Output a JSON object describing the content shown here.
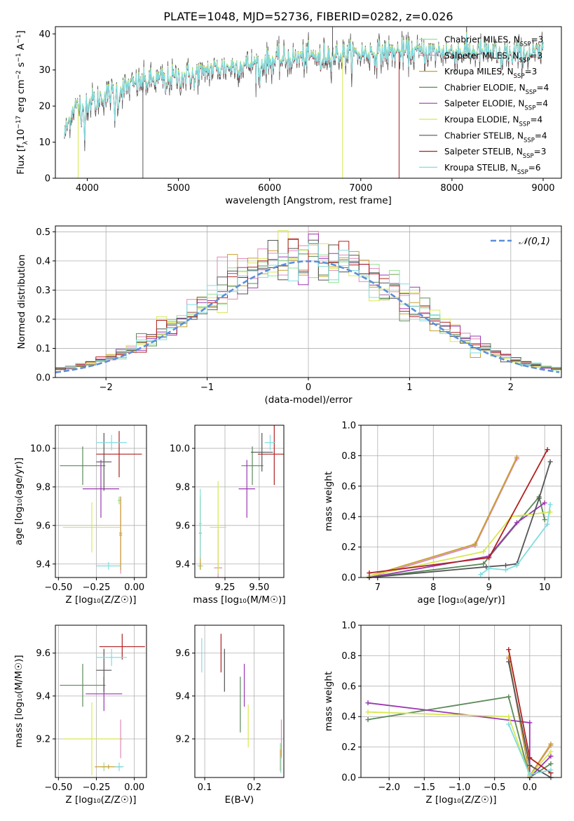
{
  "figure_title": "PLATE=1048, MJD=52736, FIBERID=0282, z=0.026",
  "models": [
    {
      "name": "Chabrier MILES, N",
      "sub": "SSP",
      "tail": "=3",
      "color": "#90e090"
    },
    {
      "name": "Salpeter MILES, N",
      "sub": "SSP",
      "tail": "=3",
      "color": "#e088b8"
    },
    {
      "name": "Kroupa MILES, N",
      "sub": "SSP",
      "tail": "=3",
      "color": "#c9a030"
    },
    {
      "name": "Chabrier ELODIE, N",
      "sub": "SSP",
      "tail": "=4",
      "color": "#5a8a5a"
    },
    {
      "name": "Salpeter ELODIE, N",
      "sub": "SSP",
      "tail": "=4",
      "color": "#9a38b0"
    },
    {
      "name": "Kroupa ELODIE, N",
      "sub": "SSP",
      "tail": "=4",
      "color": "#d8e850"
    },
    {
      "name": "Chabrier STELIB, N",
      "sub": "SSP",
      "tail": "=4",
      "color": "#555555"
    },
    {
      "name": "Salpeter STELIB, N",
      "sub": "SSP",
      "tail": "=3",
      "color": "#b02020"
    },
    {
      "name": "Kroupa STELIB, N",
      "sub": "SSP",
      "tail": "=6",
      "color": "#80dde0"
    }
  ],
  "chart_data": [
    {
      "id": "spectrum",
      "type": "line",
      "xlabel": "wavelength [Angstrom, rest frame]",
      "ylabel": {
        "pre": "Flux [f",
        "sub": "λ",
        "mid": "10",
        "sup": "−17",
        "post": " erg cm",
        "sup2": "−2",
        "post2": " s",
        "sup3": "−1",
        "post3": " A",
        "sup4": "−1",
        "post4": "]"
      },
      "xlim": [
        3650,
        9200
      ],
      "ylim": [
        0,
        42
      ],
      "xticks": [
        4000,
        5000,
        6000,
        7000,
        8000,
        9000
      ],
      "yticks": [
        0,
        10,
        20,
        30,
        40
      ],
      "continuum_knots": [
        [
          3750,
          12
        ],
        [
          3850,
          20
        ],
        [
          4000,
          21
        ],
        [
          4200,
          23
        ],
        [
          4500,
          26
        ],
        [
          4800,
          27.5
        ],
        [
          5000,
          28
        ],
        [
          5300,
          30
        ],
        [
          5600,
          31
        ],
        [
          5900,
          32
        ],
        [
          6200,
          33
        ],
        [
          6600,
          34
        ],
        [
          7000,
          34.5
        ],
        [
          7400,
          35
        ],
        [
          7800,
          35
        ],
        [
          8200,
          35
        ],
        [
          8600,
          34.8
        ],
        [
          9000,
          34.5
        ]
      ],
      "absorption_lines": [
        [
          3934,
          8
        ],
        [
          3969,
          7
        ],
        [
          4102,
          4
        ],
        [
          4300,
          6
        ],
        [
          4340,
          4
        ],
        [
          4861,
          5
        ],
        [
          5175,
          5
        ],
        [
          5270,
          3
        ],
        [
          5893,
          6
        ],
        [
          6563,
          5
        ],
        [
          8500,
          4
        ],
        [
          8542,
          5
        ],
        [
          8662,
          4
        ]
      ],
      "spikes": [
        {
          "x": 3900,
          "y": 0,
          "series": 5
        },
        {
          "x": 4610,
          "y": 0,
          "series": 6
        },
        {
          "x": 6800,
          "y": 0,
          "series": 5
        },
        {
          "x": 7420,
          "y": 0,
          "series": 7
        },
        {
          "x": 6690,
          "y": 42,
          "series": 6
        }
      ]
    },
    {
      "id": "residuals",
      "type": "histogram",
      "xlabel": "(data-model)/error",
      "ylabel": "Normed distribution",
      "xlim": [
        -2.5,
        2.5
      ],
      "ylim": [
        0,
        0.52
      ],
      "xticks": [
        -2,
        -1,
        0,
        1,
        2
      ],
      "yticks": [
        0,
        0.1,
        0.2,
        0.3,
        0.4,
        0.5
      ],
      "bin_width": 0.1,
      "reference_curve": {
        "label": "𝒩(0,1)",
        "mean": 0,
        "sigma": 1,
        "color": "#5b8fd8"
      }
    },
    {
      "id": "age_vs_Z",
      "type": "scatter_errorbar",
      "xlabel": "Z [log₁₀(Z/Z☉)]",
      "ylabel": "age  [log₁₀(age/yr)]",
      "xlim": [
        -0.52,
        0.08
      ],
      "ylim": [
        9.33,
        10.12
      ],
      "xticks": [
        -0.5,
        -0.25,
        0
      ],
      "xticklabels": [
        "−0.50",
        "−0.25",
        "0.00"
      ],
      "yticks": [
        9.4,
        9.6,
        9.8,
        10.0
      ],
      "yticklabels": [
        "9.4",
        "9.6",
        "9.8",
        "10.0"
      ],
      "points": [
        {
          "series": 0,
          "x": -0.1,
          "y": 9.73,
          "xerr": 0.01,
          "yerr": 0.02
        },
        {
          "series": 1,
          "x": -0.09,
          "y": 9.55,
          "xerr": 0.01,
          "yerr": 0.2
        },
        {
          "series": 2,
          "x": -0.09,
          "y": 9.56,
          "xerr": 0.01,
          "yerr": 0.19
        },
        {
          "series": 3,
          "x": -0.34,
          "y": 9.91,
          "xerr": 0.15,
          "yerr": 0.1
        },
        {
          "series": 4,
          "x": -0.22,
          "y": 9.79,
          "xerr": 0.12,
          "yerr": 0.15
        },
        {
          "series": 5,
          "x": -0.28,
          "y": 9.59,
          "xerr": 0.19,
          "yerr": 0.13
        },
        {
          "series": 6,
          "x": -0.2,
          "y": 9.93,
          "xerr": 0.05,
          "yerr": 0.15
        },
        {
          "series": 7,
          "x": -0.1,
          "y": 9.97,
          "xerr": 0.15,
          "yerr": 0.12
        },
        {
          "series": 8,
          "x": -0.15,
          "y": 10.03,
          "xerr": 0.1,
          "yerr": 0.04
        },
        {
          "series": 8,
          "x": -0.17,
          "y": 9.39,
          "xerr": 0.08,
          "yerr": 0.02
        }
      ]
    },
    {
      "id": "age_vs_mass",
      "type": "scatter_errorbar",
      "xlabel": "mass [log₁₀(M/M☉)]",
      "ylabel": "",
      "xlim": [
        9.03,
        9.68
      ],
      "ylim": [
        9.33,
        10.12
      ],
      "xticks": [
        9.25,
        9.5
      ],
      "xticklabels": [
        "9.25",
        "9.50"
      ],
      "yticks": [
        9.4,
        9.6,
        9.8,
        10.0
      ],
      "yticklabels": [
        "9.4",
        "9.6",
        "9.8",
        "10.0"
      ],
      "points": [
        {
          "series": 0,
          "x": 9.07,
          "y": 9.39,
          "xerr": 0.02,
          "yerr": 0.02
        },
        {
          "series": 1,
          "x": 9.2,
          "y": 9.38,
          "xerr": 0.03,
          "yerr": 0.2
        },
        {
          "series": 2,
          "x": 9.07,
          "y": 9.56,
          "xerr": 0.01,
          "yerr": 0.19
        },
        {
          "series": 3,
          "x": 9.45,
          "y": 9.91,
          "xerr": 0.08,
          "yerr": 0.1
        },
        {
          "series": 4,
          "x": 9.41,
          "y": 9.79,
          "xerr": 0.06,
          "yerr": 0.15
        },
        {
          "series": 5,
          "x": 9.2,
          "y": 9.59,
          "xerr": 0.06,
          "yerr": 0.24
        },
        {
          "series": 6,
          "x": 9.52,
          "y": 9.98,
          "xerr": 0.08,
          "yerr": 0.1
        },
        {
          "series": 7,
          "x": 9.61,
          "y": 9.97,
          "xerr": 0.12,
          "yerr": 0.16
        },
        {
          "series": 8,
          "x": 9.58,
          "y": 10.03,
          "xerr": 0.04,
          "yerr": 0.04
        },
        {
          "series": 8,
          "x": 9.07,
          "y": 9.61,
          "xerr": 0.01,
          "yerr": 0.18
        }
      ]
    },
    {
      "id": "weight_vs_age",
      "type": "line",
      "xlabel": "age  [log₁₀(age/yr)]",
      "ylabel": "mass weight",
      "xlim": [
        6.7,
        10.3
      ],
      "ylim": [
        0,
        1.0
      ],
      "xticks": [
        7,
        8,
        9,
        10
      ],
      "yticks": [
        0,
        0.2,
        0.4,
        0.6,
        0.8,
        1.0
      ],
      "yticklabels": [
        "0.0",
        "0.2",
        "0.4",
        "0.6",
        "0.8",
        "1.0"
      ],
      "series": [
        {
          "series": 0,
          "x": [
            6.85,
            8.75,
            9.5
          ],
          "y": [
            0.0,
            0.21,
            0.78
          ]
        },
        {
          "series": 1,
          "x": [
            6.85,
            8.75,
            9.5
          ],
          "y": [
            0.0,
            0.21,
            0.78
          ]
        },
        {
          "series": 2,
          "x": [
            6.85,
            8.75,
            9.5
          ],
          "y": [
            0.01,
            0.22,
            0.79
          ]
        },
        {
          "series": 3,
          "x": [
            6.85,
            8.9,
            9.9,
            10.0
          ],
          "y": [
            0.0,
            0.09,
            0.53,
            0.38
          ]
        },
        {
          "series": 4,
          "x": [
            6.85,
            9.0,
            9.5,
            10.0
          ],
          "y": [
            0.0,
            0.14,
            0.36,
            0.49
          ]
        },
        {
          "series": 5,
          "x": [
            6.85,
            8.9,
            9.4,
            10.1
          ],
          "y": [
            0.01,
            0.17,
            0.4,
            0.43
          ]
        },
        {
          "series": 6,
          "x": [
            6.85,
            8.95,
            9.3,
            9.5,
            9.9,
            10.1
          ],
          "y": [
            0.0,
            0.07,
            0.08,
            0.09,
            0.52,
            0.76
          ]
        },
        {
          "series": 7,
          "x": [
            6.85,
            9.0,
            10.05
          ],
          "y": [
            0.03,
            0.13,
            0.84
          ]
        },
        {
          "series": 8,
          "x": [
            8.85,
            9.0,
            9.3,
            9.5,
            10.05,
            10.1
          ],
          "y": [
            0.02,
            0.06,
            0.05,
            0.08,
            0.35,
            0.48
          ]
        }
      ]
    },
    {
      "id": "mass_vs_Z",
      "type": "scatter_errorbar",
      "xlabel": "Z [log₁₀(Z/Z☉)]",
      "ylabel": "mass [log₁₀(M/M☉)]",
      "xlim": [
        -0.52,
        0.08
      ],
      "ylim": [
        9.02,
        9.73
      ],
      "xticks": [
        -0.5,
        -0.25,
        0
      ],
      "xticklabels": [
        "−0.50",
        "−0.25",
        "0.00"
      ],
      "yticks": [
        9.2,
        9.4,
        9.6
      ],
      "yticklabels": [
        "9.2",
        "9.4",
        "9.6"
      ],
      "points": [
        {
          "series": 0,
          "x": -0.2,
          "y": 9.07,
          "xerr": 0.02,
          "yerr": 0.02
        },
        {
          "series": 1,
          "x": -0.09,
          "y": 9.2,
          "xerr": 0.01,
          "yerr": 0.09
        },
        {
          "series": 2,
          "x": -0.17,
          "y": 9.07,
          "xerr": 0.09,
          "yerr": 0.01
        },
        {
          "series": 3,
          "x": -0.34,
          "y": 9.45,
          "xerr": 0.15,
          "yerr": 0.1
        },
        {
          "series": 4,
          "x": -0.2,
          "y": 9.41,
          "xerr": 0.12,
          "yerr": 0.08
        },
        {
          "series": 5,
          "x": -0.28,
          "y": 9.2,
          "xerr": 0.19,
          "yerr": 0.17
        },
        {
          "series": 6,
          "x": -0.2,
          "y": 9.52,
          "xerr": 0.05,
          "yerr": 0.1
        },
        {
          "series": 7,
          "x": -0.08,
          "y": 9.63,
          "xerr": 0.15,
          "yerr": 0.06
        },
        {
          "series": 8,
          "x": -0.15,
          "y": 9.58,
          "xerr": 0.1,
          "yerr": 0.04
        },
        {
          "series": 8,
          "x": -0.1,
          "y": 9.07,
          "xerr": 0.03,
          "yerr": 0.02
        }
      ]
    },
    {
      "id": "mass_vs_EBV",
      "type": "scatter_errorbar",
      "xlabel": "E(B-V)",
      "ylabel": "",
      "xlim": [
        0.08,
        0.26
      ],
      "ylim": [
        9.02,
        9.73
      ],
      "xticks": [
        0.1,
        0.2
      ],
      "xticklabels": [
        "0.1",
        "0.2"
      ],
      "yticks": [
        9.2,
        9.4,
        9.6
      ],
      "yticklabels": [
        "9.2",
        "9.4",
        "9.6"
      ],
      "points": [
        {
          "series": 0,
          "x": 0.253,
          "y": 9.12,
          "xerr": 0,
          "yerr": 0.06
        },
        {
          "series": 1,
          "x": 0.255,
          "y": 9.2,
          "xerr": 0,
          "yerr": 0.09
        },
        {
          "series": 2,
          "x": 0.253,
          "y": 9.1,
          "xerr": 0,
          "yerr": 0.05
        },
        {
          "series": 3,
          "x": 0.172,
          "y": 9.36,
          "xerr": 0,
          "yerr": 0.13
        },
        {
          "series": 4,
          "x": 0.18,
          "y": 9.45,
          "xerr": 0,
          "yerr": 0.1
        },
        {
          "series": 5,
          "x": 0.188,
          "y": 9.26,
          "xerr": 0,
          "yerr": 0.1
        },
        {
          "series": 6,
          "x": 0.14,
          "y": 9.52,
          "xerr": 0,
          "yerr": 0.1
        },
        {
          "series": 7,
          "x": 0.133,
          "y": 9.6,
          "xerr": 0,
          "yerr": 0.09
        },
        {
          "series": 8,
          "x": 0.094,
          "y": 9.59,
          "xerr": 0,
          "yerr": 0.08
        },
        {
          "series": 8,
          "x": 0.254,
          "y": 9.08,
          "xerr": 0,
          "yerr": 0.04
        }
      ]
    },
    {
      "id": "weight_vs_Z",
      "type": "line",
      "xlabel": "Z [log₁₀(Z/Z☉)]",
      "ylabel": "mass weight",
      "xlim": [
        -2.4,
        0.45
      ],
      "ylim": [
        0,
        1.0
      ],
      "xticks": [
        -2.0,
        -1.5,
        -1.0,
        -0.5,
        0.0
      ],
      "xticklabels": [
        "−2.0",
        "−1.5",
        "−1.0",
        "−0.5",
        "0.0"
      ],
      "yticks": [
        0,
        0.2,
        0.4,
        0.6,
        0.8,
        1.0
      ],
      "yticklabels": [
        "0.0",
        "0.2",
        "0.4",
        "0.6",
        "0.8",
        "1.0"
      ],
      "series": [
        {
          "series": 0,
          "x": [
            -0.3,
            0.0,
            0.3
          ],
          "y": [
            0.78,
            0.01,
            0.21
          ]
        },
        {
          "series": 1,
          "x": [
            -0.3,
            0.0,
            0.3
          ],
          "y": [
            0.78,
            0.01,
            0.21
          ]
        },
        {
          "series": 2,
          "x": [
            -0.3,
            0.0,
            0.3
          ],
          "y": [
            0.79,
            0.01,
            0.22
          ]
        },
        {
          "series": 3,
          "x": [
            -2.3,
            -0.3,
            0.0,
            0.3
          ],
          "y": [
            0.38,
            0.53,
            0.0,
            0.09
          ]
        },
        {
          "series": 4,
          "x": [
            -2.3,
            0.0,
            0.0,
            0.3
          ],
          "y": [
            0.49,
            0.36,
            0.0,
            0.14
          ]
        },
        {
          "series": 5,
          "x": [
            -2.3,
            -0.3,
            0.0,
            0.3
          ],
          "y": [
            0.43,
            0.4,
            0.01,
            0.17
          ]
        },
        {
          "series": 6,
          "x": [
            -0.3,
            0.0,
            0.3
          ],
          "y": [
            0.76,
            0.08,
            0.0
          ]
        },
        {
          "series": 7,
          "x": [
            -0.3,
            0.0,
            0.3
          ],
          "y": [
            0.84,
            0.13,
            0.03
          ]
        },
        {
          "series": 8,
          "x": [
            -0.3,
            0.0,
            0.3
          ],
          "y": [
            0.35,
            0.02,
            0.05
          ]
        }
      ]
    }
  ]
}
